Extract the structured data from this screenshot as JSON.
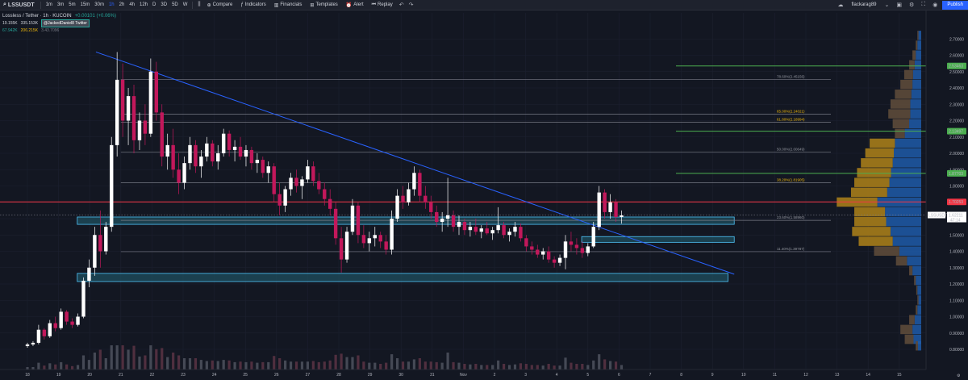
{
  "toolbar": {
    "symbol": "LSSUSDT",
    "intervals": [
      "1m",
      "3m",
      "5m",
      "15m",
      "30m",
      "1h",
      "2h",
      "4h",
      "12h",
      "D",
      "3D",
      "5D",
      "W"
    ],
    "active_interval": "1h",
    "compare_label": "Compare",
    "indicators_label": "Indicators",
    "financials_label": "Financials",
    "templates_label": "Templates",
    "alert_label": "Alert",
    "replay_label": "Replay",
    "username": "flackarag89",
    "publish_label": "Publish"
  },
  "legend": {
    "title": "Lossless / Tether · 1h · KUCOIN",
    "change": "+0.00101 (+0.06%)",
    "price_left": "19.155K",
    "price_mid": "335.153K",
    "note_tag": "@JackedDaniel8 Twitter",
    "vol_a": "67.942K",
    "vol_b": "206.215K",
    "vol_c": "3.43.7096"
  },
  "colors": {
    "background": "#131722",
    "up": "#ffffff",
    "down": "#c2185b",
    "trendline": "#2962ff",
    "resistance": "#f23645",
    "fib_line": "#787b86",
    "fib_text_yellow": "#f0b90b",
    "target_green": "#4caf50",
    "zone_fill": "#1f5263",
    "zone_border": "#4fc3f7",
    "vp_blue": "#1e5aa8",
    "vp_gold": "#a67c1a",
    "vp_brown": "#5d4a3a"
  },
  "chart_data": {
    "type": "candlestick",
    "title": "Lossless / Tether · 1h · KUCOIN",
    "ylim": [
      0.8,
      2.8
    ],
    "y_ticks": [
      "2.70000",
      "2.60000",
      "2.50000",
      "2.40000",
      "2.30000",
      "2.20000",
      "2.10000",
      "2.00000",
      "1.90000",
      "1.80000",
      "1.70000",
      "1.60000",
      "1.50000",
      "1.40000",
      "1.30000",
      "1.20000",
      "1.10000",
      "1.00000",
      "0.90000",
      "0.80000"
    ],
    "x_ticks": [
      "18",
      "19",
      "20",
      "21",
      "22",
      "23",
      "24",
      "25",
      "26",
      "27",
      "28",
      "29",
      "30",
      "31",
      "Nov",
      "2",
      "3",
      "4",
      "5",
      "6",
      "7",
      "8",
      "9",
      "10",
      "11",
      "12",
      "13",
      "14",
      "15"
    ],
    "x_label_every": 1,
    "current_price": {
      "label": "LSSUSDT",
      "value": "1.62211",
      "sub": "47:14"
    },
    "price_badges": [
      {
        "value": "2.53463",
        "kind": "green"
      },
      {
        "value": "2.13497",
        "kind": "green"
      },
      {
        "value": "1.87703",
        "kind": "green"
      },
      {
        "value": "1.70253",
        "kind": "red"
      }
    ],
    "fib_levels": [
      {
        "label": "78.60%(2.45156)",
        "price": 2.45156,
        "color": "gray"
      },
      {
        "label": "65.00%(2.24021)",
        "price": 2.24021,
        "color": "yellow"
      },
      {
        "label": "61.80%(2.18994)",
        "price": 2.18994,
        "color": "yellow"
      },
      {
        "label": "50.00%(2.00649)",
        "price": 2.00649,
        "color": "gray"
      },
      {
        "label": "38.20%(1.81905)",
        "price": 1.81905,
        "color": "yellow"
      },
      {
        "label": "23.60%(1.58960)",
        "price": 1.5896,
        "color": "gray"
      },
      {
        "label": "11.40%(1.39787)",
        "price": 1.39787,
        "color": "gray"
      }
    ],
    "target_lines": [
      2.53463,
      2.13497,
      1.87703
    ],
    "resistance_line": 1.70253,
    "trendline": [
      {
        "x": 2.2,
        "y": 2.62
      },
      {
        "x": 22.7,
        "y": 1.26
      }
    ],
    "zones": [
      {
        "x0": 1.6,
        "x1": 22.7,
        "y0": 1.61,
        "y1": 1.565
      },
      {
        "x0": 17.8,
        "x1": 22.7,
        "y0": 1.49,
        "y1": 1.455
      },
      {
        "x0": 1.6,
        "x1": 22.5,
        "y0": 1.265,
        "y1": 1.215
      }
    ],
    "candles": [
      [
        0.0,
        0.82,
        0.84,
        0.81,
        0.83
      ],
      [
        0.18,
        0.83,
        0.85,
        0.82,
        0.84
      ],
      [
        0.36,
        0.84,
        0.95,
        0.83,
        0.92
      ],
      [
        0.54,
        0.92,
        0.93,
        0.86,
        0.88
      ],
      [
        0.72,
        0.88,
        0.98,
        0.87,
        0.96
      ],
      [
        0.9,
        0.96,
        1.0,
        0.91,
        0.93
      ],
      [
        1.08,
        0.93,
        1.05,
        0.92,
        1.03
      ],
      [
        1.26,
        1.03,
        1.04,
        0.95,
        0.97
      ],
      [
        1.44,
        0.97,
        0.99,
        0.93,
        0.95
      ],
      [
        1.62,
        0.95,
        1.02,
        0.94,
        1.0
      ],
      [
        1.8,
        1.0,
        1.24,
        0.99,
        1.22
      ],
      [
        1.98,
        1.22,
        1.35,
        1.18,
        1.3
      ],
      [
        2.16,
        1.3,
        1.55,
        1.25,
        1.5
      ],
      [
        2.34,
        1.5,
        1.65,
        1.3,
        1.4
      ],
      [
        2.52,
        1.4,
        1.58,
        1.38,
        1.55
      ],
      [
        2.7,
        1.55,
        2.1,
        1.52,
        2.05
      ],
      [
        2.88,
        2.05,
        2.62,
        1.98,
        2.45
      ],
      [
        3.06,
        2.45,
        2.55,
        2.1,
        2.2
      ],
      [
        3.24,
        2.2,
        2.4,
        2.05,
        2.35
      ],
      [
        3.42,
        2.35,
        2.42,
        2.0,
        2.08
      ],
      [
        3.6,
        2.08,
        2.25,
        2.02,
        2.2
      ],
      [
        3.78,
        2.2,
        2.3,
        2.05,
        2.12
      ],
      [
        3.96,
        2.12,
        2.58,
        2.1,
        2.5
      ],
      [
        4.14,
        2.5,
        2.56,
        2.2,
        2.25
      ],
      [
        4.32,
        2.25,
        2.3,
        1.92,
        1.98
      ],
      [
        4.5,
        1.98,
        2.12,
        1.9,
        2.05
      ],
      [
        4.68,
        2.05,
        2.15,
        1.85,
        1.9
      ],
      [
        4.86,
        1.9,
        2.0,
        1.75,
        1.82
      ],
      [
        5.04,
        1.82,
        1.98,
        1.78,
        1.94
      ],
      [
        5.22,
        1.94,
        2.1,
        1.9,
        2.05
      ],
      [
        5.4,
        2.05,
        2.08,
        1.88,
        1.92
      ],
      [
        5.58,
        1.92,
        2.02,
        1.85,
        1.98
      ],
      [
        5.76,
        1.98,
        2.1,
        1.95,
        2.06
      ],
      [
        5.94,
        2.06,
        2.08,
        1.92,
        1.95
      ],
      [
        6.12,
        1.95,
        2.05,
        1.9,
        2.0
      ],
      [
        6.3,
        2.0,
        2.15,
        1.98,
        2.12
      ],
      [
        6.48,
        2.12,
        2.14,
        1.98,
        2.02
      ],
      [
        6.66,
        2.02,
        2.08,
        1.95,
        2.04
      ],
      [
        6.84,
        2.04,
        2.1,
        1.96,
        1.98
      ],
      [
        7.02,
        1.98,
        2.05,
        1.92,
        2.02
      ],
      [
        7.2,
        2.02,
        2.04,
        1.9,
        1.94
      ],
      [
        7.38,
        1.94,
        2.0,
        1.88,
        1.96
      ],
      [
        7.56,
        1.96,
        1.98,
        1.85,
        1.88
      ],
      [
        7.74,
        1.88,
        1.95,
        1.82,
        1.92
      ],
      [
        7.92,
        1.92,
        1.94,
        1.7,
        1.75
      ],
      [
        8.1,
        1.75,
        1.82,
        1.62,
        1.68
      ],
      [
        8.28,
        1.68,
        1.8,
        1.64,
        1.78
      ],
      [
        8.46,
        1.78,
        1.88,
        1.74,
        1.85
      ],
      [
        8.64,
        1.85,
        1.9,
        1.76,
        1.8
      ],
      [
        8.82,
        1.8,
        1.86,
        1.72,
        1.84
      ],
      [
        9.0,
        1.84,
        1.96,
        1.82,
        1.92
      ],
      [
        9.18,
        1.92,
        1.95,
        1.8,
        1.83
      ],
      [
        9.36,
        1.83,
        1.88,
        1.75,
        1.78
      ],
      [
        9.54,
        1.78,
        1.82,
        1.68,
        1.72
      ],
      [
        9.72,
        1.72,
        1.78,
        1.62,
        1.66
      ],
      [
        9.9,
        1.66,
        1.7,
        1.44,
        1.48
      ],
      [
        10.08,
        1.48,
        1.55,
        1.27,
        1.35
      ],
      [
        10.26,
        1.35,
        1.55,
        1.33,
        1.52
      ],
      [
        10.44,
        1.52,
        1.72,
        1.5,
        1.68
      ],
      [
        10.62,
        1.68,
        1.7,
        1.45,
        1.5
      ],
      [
        10.8,
        1.5,
        1.56,
        1.42,
        1.45
      ],
      [
        10.98,
        1.45,
        1.52,
        1.4,
        1.48
      ],
      [
        11.16,
        1.48,
        1.55,
        1.43,
        1.5
      ],
      [
        11.34,
        1.5,
        1.52,
        1.42,
        1.46
      ],
      [
        11.52,
        1.46,
        1.5,
        1.38,
        1.41
      ],
      [
        11.7,
        1.41,
        1.65,
        1.38,
        1.6
      ],
      [
        11.88,
        1.6,
        1.78,
        1.58,
        1.74
      ],
      [
        12.06,
        1.74,
        1.8,
        1.66,
        1.7
      ],
      [
        12.24,
        1.7,
        1.82,
        1.68,
        1.78
      ],
      [
        12.42,
        1.78,
        1.92,
        1.74,
        1.88
      ],
      [
        12.6,
        1.88,
        1.9,
        1.7,
        1.74
      ],
      [
        12.78,
        1.74,
        1.8,
        1.66,
        1.7
      ],
      [
        12.96,
        1.7,
        1.74,
        1.6,
        1.64
      ],
      [
        13.14,
        1.64,
        1.68,
        1.55,
        1.58
      ],
      [
        13.32,
        1.58,
        1.64,
        1.52,
        1.6
      ],
      [
        13.5,
        1.6,
        1.85,
        1.55,
        1.62
      ],
      [
        13.68,
        1.62,
        1.65,
        1.52,
        1.55
      ],
      [
        13.86,
        1.55,
        1.62,
        1.5,
        1.58
      ],
      [
        14.04,
        1.58,
        1.6,
        1.5,
        1.53
      ],
      [
        14.22,
        1.53,
        1.58,
        1.49,
        1.55
      ],
      [
        14.4,
        1.55,
        1.6,
        1.5,
        1.52
      ],
      [
        14.58,
        1.52,
        1.56,
        1.48,
        1.54
      ],
      [
        14.76,
        1.54,
        1.58,
        1.5,
        1.51
      ],
      [
        14.94,
        1.51,
        1.55,
        1.47,
        1.53
      ],
      [
        15.12,
        1.53,
        1.67,
        1.51,
        1.56
      ],
      [
        15.3,
        1.56,
        1.58,
        1.48,
        1.5
      ],
      [
        15.48,
        1.5,
        1.54,
        1.46,
        1.52
      ],
      [
        15.66,
        1.52,
        1.58,
        1.49,
        1.55
      ],
      [
        15.84,
        1.55,
        1.57,
        1.46,
        1.48
      ],
      [
        16.02,
        1.48,
        1.5,
        1.4,
        1.43
      ],
      [
        16.2,
        1.43,
        1.46,
        1.38,
        1.41
      ],
      [
        16.38,
        1.41,
        1.44,
        1.36,
        1.38
      ],
      [
        16.56,
        1.38,
        1.42,
        1.35,
        1.4
      ],
      [
        16.74,
        1.4,
        1.43,
        1.33,
        1.35
      ],
      [
        16.92,
        1.35,
        1.37,
        1.3,
        1.33
      ],
      [
        17.1,
        1.33,
        1.38,
        1.31,
        1.36
      ],
      [
        17.28,
        1.36,
        1.5,
        1.29,
        1.46
      ],
      [
        17.46,
        1.46,
        1.52,
        1.4,
        1.44
      ],
      [
        17.64,
        1.44,
        1.48,
        1.38,
        1.42
      ],
      [
        17.82,
        1.42,
        1.46,
        1.36,
        1.39
      ],
      [
        18.0,
        1.39,
        1.45,
        1.37,
        1.43
      ],
      [
        18.18,
        1.43,
        1.58,
        1.42,
        1.55
      ],
      [
        18.36,
        1.55,
        1.8,
        1.53,
        1.76
      ],
      [
        18.54,
        1.76,
        1.78,
        1.6,
        1.64
      ],
      [
        18.72,
        1.64,
        1.75,
        1.6,
        1.7
      ],
      [
        18.9,
        1.7,
        1.72,
        1.58,
        1.61
      ],
      [
        19.08,
        1.61,
        1.65,
        1.57,
        1.62
      ]
    ],
    "volume_profile": [
      {
        "price": 2.72,
        "blue": 0.05,
        "gold": 0.0,
        "brown": 0.02
      },
      {
        "price": 2.66,
        "blue": 0.07,
        "gold": 0.0,
        "brown": 0.03
      },
      {
        "price": 2.6,
        "blue": 0.1,
        "gold": 0.0,
        "brown": 0.06
      },
      {
        "price": 2.54,
        "blue": 0.12,
        "gold": 0.0,
        "brown": 0.1
      },
      {
        "price": 2.48,
        "blue": 0.15,
        "gold": 0.0,
        "brown": 0.16
      },
      {
        "price": 2.42,
        "blue": 0.16,
        "gold": 0.0,
        "brown": 0.22
      },
      {
        "price": 2.36,
        "blue": 0.18,
        "gold": 0.0,
        "brown": 0.3
      },
      {
        "price": 2.3,
        "blue": 0.2,
        "gold": 0.0,
        "brown": 0.36
      },
      {
        "price": 2.24,
        "blue": 0.2,
        "gold": 0.0,
        "brown": 0.4
      },
      {
        "price": 2.18,
        "blue": 0.22,
        "gold": 0.0,
        "brown": 0.3
      },
      {
        "price": 2.12,
        "blue": 0.3,
        "gold": 0.0,
        "brown": 0.18
      },
      {
        "price": 2.06,
        "blue": 0.48,
        "gold": 0.46,
        "brown": 0.0
      },
      {
        "price": 2.0,
        "blue": 0.5,
        "gold": 0.52,
        "brown": 0.0
      },
      {
        "price": 1.94,
        "blue": 0.52,
        "gold": 0.58,
        "brown": 0.0
      },
      {
        "price": 1.88,
        "blue": 0.55,
        "gold": 0.62,
        "brown": 0.0
      },
      {
        "price": 1.82,
        "blue": 0.58,
        "gold": 0.64,
        "brown": 0.0
      },
      {
        "price": 1.76,
        "blue": 0.62,
        "gold": 0.66,
        "brown": 0.0
      },
      {
        "price": 1.7,
        "blue": 0.8,
        "gold": 0.74,
        "brown": 0.0
      },
      {
        "price": 1.64,
        "blue": 0.66,
        "gold": 0.56,
        "brown": 0.0
      },
      {
        "price": 1.58,
        "blue": 0.64,
        "gold": 0.58,
        "brown": 0.0
      },
      {
        "price": 1.52,
        "blue": 0.56,
        "gold": 0.7,
        "brown": 0.0
      },
      {
        "price": 1.46,
        "blue": 0.52,
        "gold": 0.62,
        "brown": 0.0
      },
      {
        "price": 1.4,
        "blue": 0.4,
        "gold": 0.0,
        "brown": 0.46
      },
      {
        "price": 1.34,
        "blue": 0.26,
        "gold": 0.0,
        "brown": 0.2
      },
      {
        "price": 1.28,
        "blue": 0.16,
        "gold": 0.0,
        "brown": 0.06
      },
      {
        "price": 1.22,
        "blue": 0.1,
        "gold": 0.0,
        "brown": 0.03
      },
      {
        "price": 1.16,
        "blue": 0.07,
        "gold": 0.0,
        "brown": 0.02
      },
      {
        "price": 1.1,
        "blue": 0.05,
        "gold": 0.0,
        "brown": 0.02
      },
      {
        "price": 1.04,
        "blue": 0.07,
        "gold": 0.0,
        "brown": 0.03
      },
      {
        "price": 0.98,
        "blue": 0.12,
        "gold": 0.0,
        "brown": 0.1
      },
      {
        "price": 0.92,
        "blue": 0.16,
        "gold": 0.0,
        "brown": 0.22
      },
      {
        "price": 0.86,
        "blue": 0.14,
        "gold": 0.0,
        "brown": 0.16
      },
      {
        "price": 0.82,
        "blue": 0.06,
        "gold": 0.0,
        "brown": 0.04
      }
    ]
  }
}
